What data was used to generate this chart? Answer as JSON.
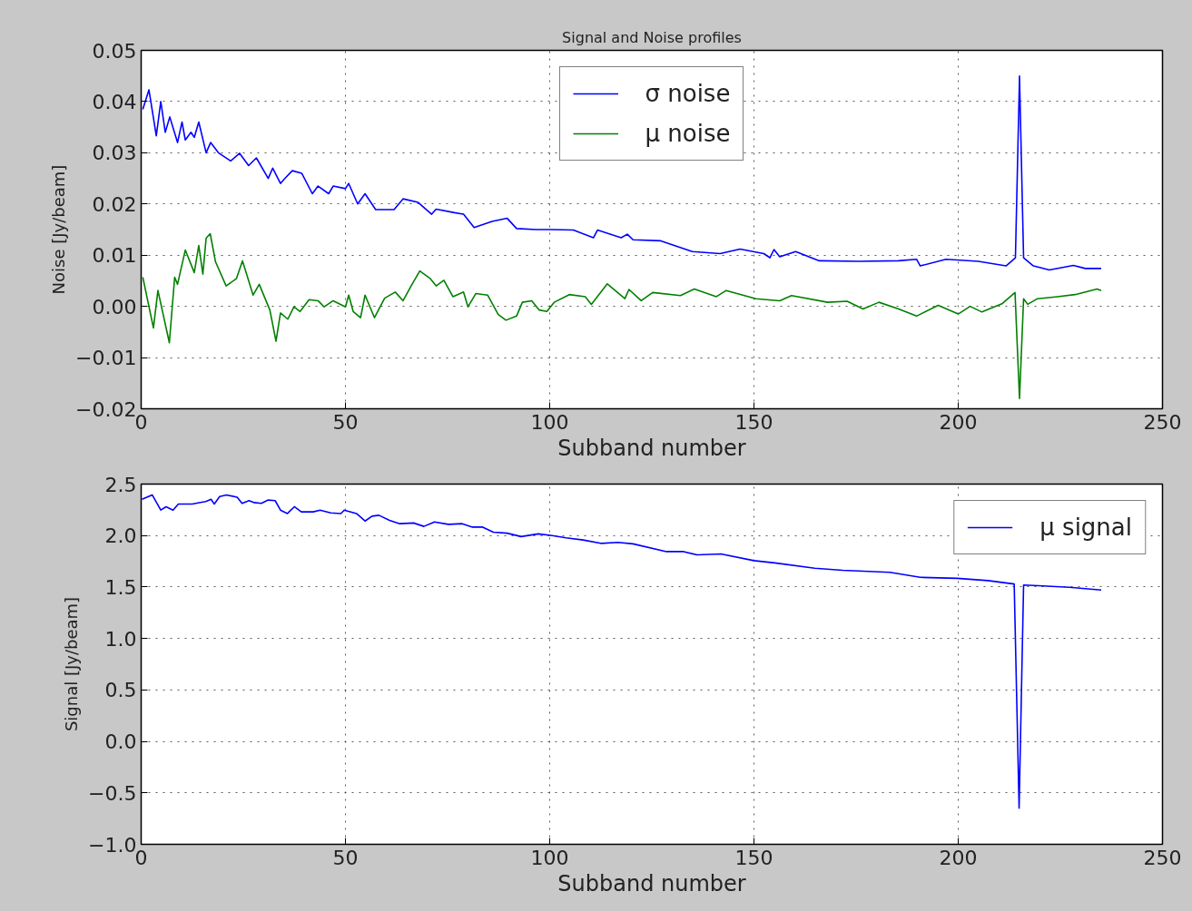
{
  "chart_data": [
    {
      "type": "line",
      "title": "Signal and Noise profiles",
      "xlabel": "Subband number",
      "ylabel": "Noise [Jy/beam]",
      "xlim": [
        0,
        250
      ],
      "xticks": [
        0,
        50,
        100,
        150,
        200,
        250
      ],
      "ylim": [
        -0.02,
        0.05
      ],
      "yticks": [
        {
          "value": -0.02,
          "label": "−0.02"
        },
        {
          "value": -0.01,
          "label": "−0.01"
        },
        {
          "value": 0,
          "label": "0.00"
        },
        {
          "value": 0.01,
          "label": "0.01"
        },
        {
          "value": 0.02,
          "label": "0.02"
        },
        {
          "value": 0.03,
          "label": "0.03"
        },
        {
          "value": 0.04,
          "label": "0.04"
        },
        {
          "value": 0.05,
          "label": "0.05"
        }
      ],
      "grid": true,
      "legend": "top",
      "line_style": "solid",
      "series": [
        {
          "name": "σ noise",
          "color": "#0000ff",
          "x": [
            0.4,
            1.9,
            3.7,
            4.8,
            5.9,
            7,
            8.9,
            10,
            10.8,
            12.2,
            13,
            14.1,
            15.9,
            17,
            18.9,
            21.9,
            24.1,
            26.3,
            28.2,
            31.1,
            32.2,
            34.1,
            35.2,
            37,
            39.3,
            41.9,
            43.3,
            45.9,
            47,
            50,
            50.8,
            53,
            54.8,
            57.4,
            61.9,
            64.1,
            67.8,
            71.1,
            72.2,
            76.7,
            78.9,
            81.5,
            85.9,
            89.6,
            91.9,
            96.7,
            100.4,
            105.8,
            110.7,
            111.7,
            117.5,
            119,
            120.4,
            127.2,
            134.9,
            141.7,
            146.6,
            152.4,
            153.9,
            154.9,
            156.3,
            160.2,
            166,
            175.7,
            185.4,
            189.8,
            190.7,
            197,
            204.9,
            211.7,
            214,
            215,
            216,
            218.4,
            222.3,
            228.2,
            231.1,
            235
          ],
          "values": [
            0.0385,
            0.0423,
            0.0333,
            0.04,
            0.034,
            0.037,
            0.032,
            0.036,
            0.0325,
            0.034,
            0.033,
            0.036,
            0.03,
            0.032,
            0.03,
            0.0284,
            0.0299,
            0.0275,
            0.029,
            0.025,
            0.027,
            0.024,
            0.025,
            0.0265,
            0.026,
            0.022,
            0.0235,
            0.022,
            0.0235,
            0.023,
            0.024,
            0.02,
            0.022,
            0.0189,
            0.0189,
            0.021,
            0.0203,
            0.018,
            0.019,
            0.0183,
            0.018,
            0.0154,
            0.0166,
            0.0172,
            0.0152,
            0.015,
            0.015,
            0.0149,
            0.0134,
            0.0149,
            0.0134,
            0.0141,
            0.013,
            0.0128,
            0.0107,
            0.0103,
            0.0112,
            0.0103,
            0.0095,
            0.0111,
            0.0097,
            0.0107,
            0.0089,
            0.0088,
            0.0089,
            0.0092,
            0.0079,
            0.0092,
            0.0088,
            0.0079,
            0.0095,
            0.045,
            0.0095,
            0.0079,
            0.0071,
            0.008,
            0.0074,
            0.0074
          ]
        },
        {
          "name": "μ noise",
          "color": "#008000",
          "x": [
            0.4,
            3,
            4.1,
            6.9,
            8.2,
            8.9,
            10.8,
            13,
            14.1,
            15.1,
            15.9,
            16.9,
            18.2,
            20.8,
            23.3,
            24.8,
            27.4,
            28.9,
            31.5,
            33,
            34.1,
            35.9,
            37.4,
            38.9,
            41.1,
            43.3,
            44.8,
            47,
            50,
            50.8,
            51.9,
            53.7,
            54.8,
            57.1,
            59.6,
            62.2,
            64.1,
            66.3,
            68.2,
            70.8,
            72.2,
            74.1,
            76.3,
            78.9,
            80,
            81.9,
            84.8,
            87.4,
            89.3,
            91.9,
            93.3,
            95.6,
            97.4,
            99.3,
            101.1,
            104.8,
            108.7,
            110.2,
            114.1,
            118.4,
            119.4,
            122.4,
            125.2,
            132,
            135.4,
            140.8,
            143.2,
            150.5,
            156.3,
            159.2,
            168,
            172.8,
            176.7,
            180.6,
            185.4,
            189.8,
            195.1,
            200,
            202.9,
            205.8,
            210.7,
            213.9,
            215,
            216,
            217,
            219.4,
            224.3,
            228.6,
            234,
            235
          ],
          "values": [
            0.0057,
            -0.0042,
            0.0031,
            -0.0071,
            0.0057,
            0.0043,
            0.011,
            0.0066,
            0.0119,
            0.0063,
            0.0133,
            0.0142,
            0.0087,
            0.004,
            0.0054,
            0.0089,
            0.0022,
            0.0043,
            -0.0007,
            -0.0068,
            -0.0013,
            -0.0025,
            -0.0001,
            -0.001,
            0.0013,
            0.0011,
            -0.0001,
            0.0011,
            -0.0001,
            0.0022,
            -0.001,
            -0.0022,
            0.0022,
            -0.0022,
            0.0016,
            0.0028,
            0.0011,
            0.0043,
            0.0069,
            0.0054,
            0.004,
            0.0051,
            0.0019,
            0.0028,
            -0.0001,
            0.0025,
            0.0022,
            -0.0016,
            -0.0027,
            -0.0019,
            0.0008,
            0.0011,
            -0.0007,
            -0.001,
            0.0008,
            0.0023,
            0.0019,
            0.0004,
            0.0044,
            0.0015,
            0.0033,
            0.0011,
            0.0027,
            0.0021,
            0.0034,
            0.0019,
            0.0031,
            0.0015,
            0.0011,
            0.0021,
            0.0008,
            0.001,
            -0.0005,
            0.0008,
            -0.0005,
            -0.0019,
            0.0002,
            -0.0015,
            0.0,
            -0.0011,
            0.0005,
            0.0027,
            -0.018,
            0.0015,
            0.0004,
            0.0015,
            0.0019,
            0.0023,
            0.0034,
            0.0031
          ]
        }
      ]
    },
    {
      "type": "line",
      "xlabel": "Subband number",
      "ylabel": "Signal [Jy/beam]",
      "xlim": [
        0,
        250
      ],
      "xticks": [
        0,
        50,
        100,
        150,
        200,
        250
      ],
      "ylim": [
        -1.0,
        2.5
      ],
      "yticks": [
        {
          "value": -1,
          "label": "−1.0"
        },
        {
          "value": -0.5,
          "label": "−0.5"
        },
        {
          "value": 0,
          "label": "0.0"
        },
        {
          "value": 0.5,
          "label": "0.5"
        },
        {
          "value": 1,
          "label": "1.0"
        },
        {
          "value": 1.5,
          "label": "1.5"
        },
        {
          "value": 2,
          "label": "2.0"
        },
        {
          "value": 2.5,
          "label": "2.5"
        }
      ],
      "grid": true,
      "legend": "top right",
      "line_style": "solid",
      "series": [
        {
          "name": "μ signal",
          "color": "#0000ff",
          "x": [
            0.2,
            2.7,
            4.8,
            6.1,
            7.8,
            9.1,
            12.5,
            14.2,
            15.8,
            17.1,
            17.9,
            19.2,
            20.9,
            23.5,
            24.7,
            26.4,
            27.7,
            29.4,
            31.1,
            32.8,
            34.1,
            35.8,
            37.5,
            39.2,
            42.1,
            43.8,
            46.4,
            48.9,
            49.7,
            52.7,
            54.8,
            56.5,
            58.2,
            60.8,
            63.3,
            66.7,
            69.2,
            71.8,
            75.2,
            78.6,
            81.1,
            83.6,
            86.2,
            89.6,
            93,
            97.2,
            100.6,
            104,
            108.2,
            112.5,
            116.7,
            120.4,
            128.6,
            132.8,
            136.1,
            141.9,
            150,
            155.1,
            164.9,
            171.7,
            183.3,
            190.7,
            199.8,
            207.3,
            213.7,
            214.9,
            216,
            219.7,
            227.2,
            235
          ],
          "values": [
            2.352,
            2.395,
            2.247,
            2.28,
            2.247,
            2.306,
            2.306,
            2.32,
            2.33,
            2.352,
            2.306,
            2.378,
            2.395,
            2.372,
            2.312,
            2.339,
            2.32,
            2.312,
            2.345,
            2.339,
            2.247,
            2.214,
            2.28,
            2.23,
            2.23,
            2.247,
            2.22,
            2.214,
            2.247,
            2.214,
            2.141,
            2.188,
            2.197,
            2.148,
            2.115,
            2.122,
            2.089,
            2.132,
            2.109,
            2.115,
            2.082,
            2.082,
            2.033,
            2.023,
            1.99,
            2.016,
            2.0,
            1.977,
            1.957,
            1.924,
            1.934,
            1.919,
            1.844,
            1.844,
            1.812,
            1.821,
            1.756,
            1.734,
            1.682,
            1.662,
            1.643,
            1.594,
            1.584,
            1.562,
            1.529,
            -0.65,
            1.519,
            1.513,
            1.497,
            1.471
          ]
        }
      ]
    }
  ]
}
